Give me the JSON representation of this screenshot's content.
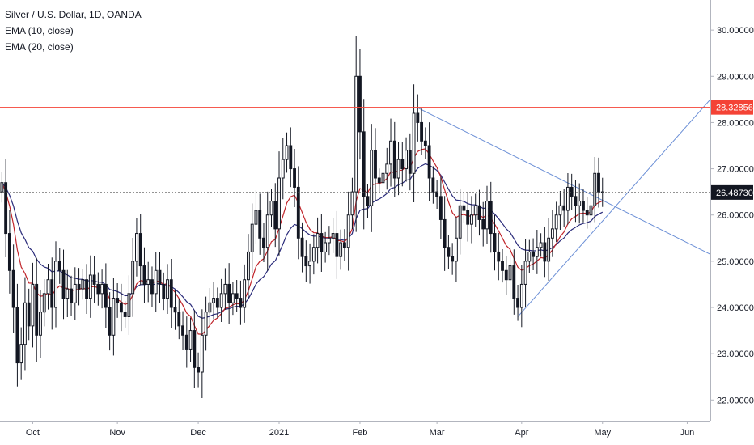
{
  "chart_data": {
    "type": "candlestick",
    "title": "Silver / U.S. Dollar, 1D, OANDA",
    "indicators": [
      "EMA (10, close)",
      "EMA (20, close)"
    ],
    "ylim": [
      21.55,
      30.65
    ],
    "y_ticks": [
      "22.00000",
      "23.00000",
      "24.00000",
      "25.00000",
      "26.00000",
      "27.00000",
      "28.00000",
      "29.00000",
      "30.00000"
    ],
    "x_ticks": [
      {
        "label": "Oct",
        "index": 8
      },
      {
        "label": "Nov",
        "index": 30
      },
      {
        "label": "Dec",
        "index": 51
      },
      {
        "label": "2021",
        "index": 72
      },
      {
        "label": "Feb",
        "index": 93
      },
      {
        "label": "Mar",
        "index": 113
      },
      {
        "label": "Apr",
        "index": 135
      },
      {
        "label": "May",
        "index": 156
      },
      {
        "label": "Jun",
        "index": 178
      }
    ],
    "x_range": [
      -0.5,
      184
    ],
    "resistance_level": "28.32856",
    "current_price": "26.48730",
    "trendlines": [
      {
        "name": "descending-resistance",
        "from": {
          "index": 108,
          "price": 28.32
        },
        "to": {
          "index": 184,
          "price": 25.15
        }
      },
      {
        "name": "ascending-support",
        "from": {
          "index": 134,
          "price": 23.8
        },
        "to": {
          "index": 184,
          "price": 28.5
        }
      }
    ],
    "closes": [
      26.7,
      25.6,
      24.8,
      24.0,
      22.8,
      23.2,
      24.1,
      23.6,
      24.5,
      23.4,
      23.9,
      24.3,
      24.6,
      24.0,
      25.0,
      24.8,
      24.2,
      24.4,
      24.1,
      24.5,
      24.4,
      24.6,
      24.2,
      24.7,
      24.5,
      24.3,
      24.5,
      24.0,
      23.4,
      24.2,
      24.1,
      23.9,
      23.8,
      24.3,
      25.0,
      25.6,
      24.9,
      24.5,
      24.6,
      24.3,
      24.8,
      24.5,
      24.2,
      24.6,
      24.0,
      23.9,
      23.6,
      23.4,
      23.1,
      23.5,
      22.7,
      22.6,
      23.4,
      23.9,
      24.1,
      24.2,
      24.0,
      24.3,
      24.5,
      24.1,
      24.3,
      24.2,
      24.0,
      24.6,
      25.2,
      25.8,
      26.1,
      25.5,
      25.3,
      26.0,
      26.3,
      25.7,
      26.8,
      27.2,
      27.5,
      27.0,
      26.6,
      25.5,
      25.1,
      24.9,
      25.0,
      25.3,
      25.6,
      25.2,
      25.4,
      25.5,
      25.6,
      25.1,
      25.4,
      25.3,
      26.0,
      26.5,
      29.0,
      27.8,
      26.4,
      26.2,
      27.4,
      26.8,
      26.7,
      26.9,
      27.1,
      27.6,
      26.8,
      27.2,
      27.0,
      27.4,
      26.9,
      28.2,
      28.0,
      27.6,
      27.5,
      26.8,
      26.5,
      26.4,
      25.9,
      25.3,
      25.1,
      25.0,
      25.5,
      26.2,
      26.1,
      25.8,
      26.0,
      26.2,
      25.9,
      25.7,
      26.3,
      25.6,
      25.2,
      25.0,
      24.8,
      24.6,
      24.9,
      24.2,
      24.0,
      24.5,
      25.0,
      25.2,
      25.1,
      25.3,
      25.4,
      25.0,
      25.5,
      25.7,
      26.0,
      26.2,
      26.1,
      26.6,
      26.4,
      26.2,
      26.3,
      26.1,
      26.0,
      26.2,
      26.9,
      26.5,
      26.48
    ]
  }
}
